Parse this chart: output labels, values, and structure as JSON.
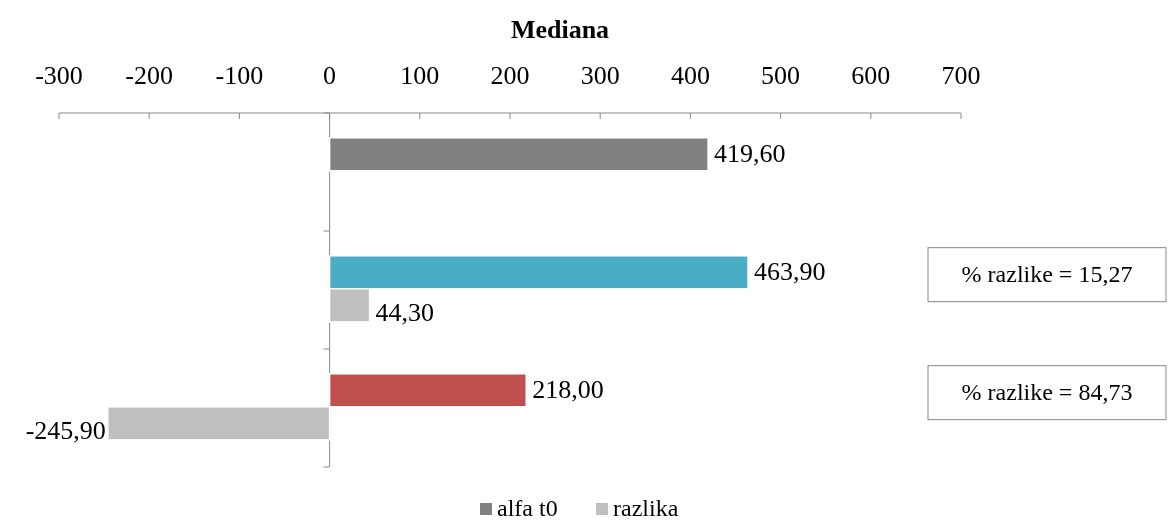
{
  "chart_data": {
    "type": "bar",
    "orientation": "horizontal",
    "title": "Mediana",
    "categories": [
      null,
      null,
      null
    ],
    "xlim": [
      -300,
      700
    ],
    "xticks": [
      -300,
      -200,
      -100,
      0,
      100,
      200,
      300,
      400,
      500,
      600,
      700
    ],
    "series": [
      {
        "name": "alfa t0",
        "color": "#808080",
        "colors": [
          "#808080",
          "#4bacc6",
          "#c0504d"
        ],
        "values": [
          419.6,
          463.9,
          218.0
        ],
        "value_labels": [
          "419,60",
          "463,90",
          "218,00"
        ]
      },
      {
        "name": "razlika",
        "color": "#bfbfbf",
        "values": [
          null,
          44.3,
          -245.9
        ],
        "value_labels": [
          null,
          "44,30",
          "-245,90"
        ]
      }
    ],
    "annotations": [
      "% razlike = 15,27",
      "% razlike = 84,73"
    ],
    "legend": "bottom"
  }
}
